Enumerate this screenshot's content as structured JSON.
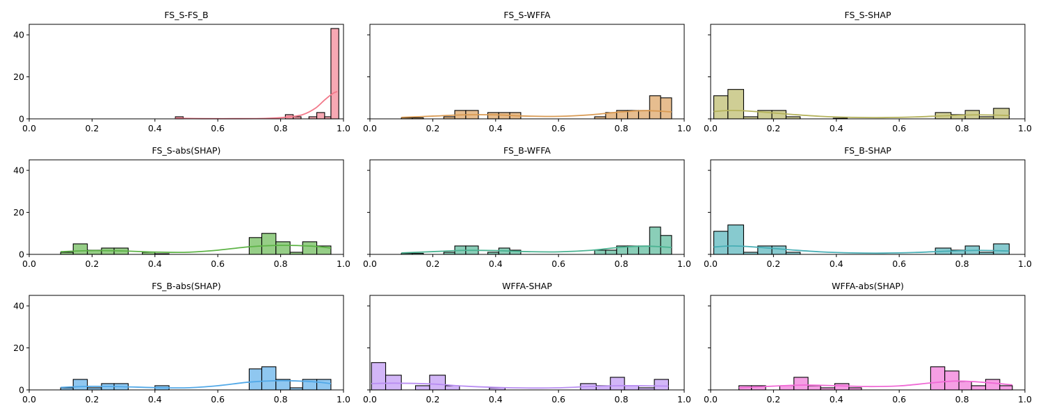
{
  "chart_data": [
    {
      "type": "histogram",
      "title": "FS_S-FS_B",
      "color": "#f2798a",
      "xlim": [
        0,
        1
      ],
      "ylim": [
        0,
        45
      ],
      "xticks": [
        "0.0",
        "0.2",
        "0.4",
        "0.6",
        "0.8",
        "1.0"
      ],
      "yticks": [
        "0",
        "20",
        "40"
      ],
      "bins": [
        {
          "x0": 0.465,
          "x1": 0.49,
          "count": 1
        },
        {
          "x0": 0.815,
          "x1": 0.84,
          "count": 2
        },
        {
          "x0": 0.84,
          "x1": 0.865,
          "count": 1
        },
        {
          "x0": 0.89,
          "x1": 0.915,
          "count": 1
        },
        {
          "x0": 0.915,
          "x1": 0.94,
          "count": 3
        },
        {
          "x0": 0.94,
          "x1": 0.96,
          "count": 1
        },
        {
          "x0": 0.96,
          "x1": 0.985,
          "count": 43
        }
      ],
      "kde": [
        [
          0.465,
          0.3
        ],
        [
          0.55,
          0.1
        ],
        [
          0.65,
          0.1
        ],
        [
          0.75,
          0.2
        ],
        [
          0.82,
          0.8
        ],
        [
          0.87,
          2.0
        ],
        [
          0.91,
          5.0
        ],
        [
          0.94,
          9.0
        ],
        [
          0.965,
          12.0
        ],
        [
          0.98,
          13.0
        ]
      ]
    },
    {
      "type": "histogram",
      "title": "FS_S-WFFA",
      "color": "#d99a52",
      "xlim": [
        0,
        1
      ],
      "ylim": [
        0,
        45
      ],
      "xticks": [
        "0.0",
        "0.2",
        "0.4",
        "0.6",
        "0.8",
        "1.0"
      ],
      "yticks": [
        "0",
        "20",
        "40"
      ],
      "bins": [
        {
          "x0": 0.1,
          "x1": 0.135,
          "count": 0.5
        },
        {
          "x0": 0.135,
          "x1": 0.17,
          "count": 0.5
        },
        {
          "x0": 0.235,
          "x1": 0.27,
          "count": 1
        },
        {
          "x0": 0.27,
          "x1": 0.305,
          "count": 4
        },
        {
          "x0": 0.305,
          "x1": 0.345,
          "count": 4
        },
        {
          "x0": 0.375,
          "x1": 0.41,
          "count": 3
        },
        {
          "x0": 0.41,
          "x1": 0.445,
          "count": 3
        },
        {
          "x0": 0.445,
          "x1": 0.48,
          "count": 3
        },
        {
          "x0": 0.715,
          "x1": 0.75,
          "count": 1
        },
        {
          "x0": 0.75,
          "x1": 0.785,
          "count": 3
        },
        {
          "x0": 0.785,
          "x1": 0.82,
          "count": 4
        },
        {
          "x0": 0.82,
          "x1": 0.855,
          "count": 4
        },
        {
          "x0": 0.855,
          "x1": 0.89,
          "count": 4
        },
        {
          "x0": 0.89,
          "x1": 0.925,
          "count": 11
        },
        {
          "x0": 0.925,
          "x1": 0.96,
          "count": 10
        }
      ],
      "kde": [
        [
          0.1,
          0.7
        ],
        [
          0.2,
          1.3
        ],
        [
          0.3,
          1.9
        ],
        [
          0.4,
          1.9
        ],
        [
          0.5,
          1.3
        ],
        [
          0.6,
          1.2
        ],
        [
          0.7,
          1.9
        ],
        [
          0.8,
          3.3
        ],
        [
          0.88,
          3.9
        ],
        [
          0.96,
          3.3
        ]
      ]
    },
    {
      "type": "histogram",
      "title": "FS_S-SHAP",
      "color": "#b5b35c",
      "xlim": [
        0,
        1
      ],
      "ylim": [
        0,
        45
      ],
      "xticks": [
        "0.0",
        "0.2",
        "0.4",
        "0.6",
        "0.8",
        "1.0"
      ],
      "yticks": [
        "0",
        "20",
        "40"
      ],
      "bins": [
        {
          "x0": 0.01,
          "x1": 0.055,
          "count": 11
        },
        {
          "x0": 0.055,
          "x1": 0.105,
          "count": 14
        },
        {
          "x0": 0.105,
          "x1": 0.15,
          "count": 1
        },
        {
          "x0": 0.15,
          "x1": 0.195,
          "count": 4
        },
        {
          "x0": 0.195,
          "x1": 0.24,
          "count": 4
        },
        {
          "x0": 0.24,
          "x1": 0.285,
          "count": 1
        },
        {
          "x0": 0.39,
          "x1": 0.435,
          "count": 0.3
        },
        {
          "x0": 0.715,
          "x1": 0.765,
          "count": 3
        },
        {
          "x0": 0.765,
          "x1": 0.81,
          "count": 2
        },
        {
          "x0": 0.81,
          "x1": 0.855,
          "count": 4
        },
        {
          "x0": 0.855,
          "x1": 0.9,
          "count": 1
        },
        {
          "x0": 0.9,
          "x1": 0.95,
          "count": 5
        }
      ],
      "kde": [
        [
          0.01,
          3.5
        ],
        [
          0.07,
          4.0
        ],
        [
          0.15,
          3.4
        ],
        [
          0.25,
          2.2
        ],
        [
          0.35,
          1.2
        ],
        [
          0.45,
          0.7
        ],
        [
          0.55,
          0.6
        ],
        [
          0.65,
          0.9
        ],
        [
          0.75,
          1.5
        ],
        [
          0.85,
          1.9
        ],
        [
          0.95,
          1.6
        ]
      ]
    },
    {
      "type": "histogram",
      "title": "FS_S-abs(SHAP)",
      "color": "#5db346",
      "xlim": [
        0,
        1
      ],
      "ylim": [
        0,
        45
      ],
      "xticks": [
        "0.0",
        "0.2",
        "0.4",
        "0.6",
        "0.8",
        "1.0"
      ],
      "yticks": [
        "0",
        "20",
        "40"
      ],
      "bins": [
        {
          "x0": 0.1,
          "x1": 0.14,
          "count": 1
        },
        {
          "x0": 0.14,
          "x1": 0.185,
          "count": 5
        },
        {
          "x0": 0.185,
          "x1": 0.23,
          "count": 2
        },
        {
          "x0": 0.23,
          "x1": 0.27,
          "count": 3
        },
        {
          "x0": 0.27,
          "x1": 0.315,
          "count": 3
        },
        {
          "x0": 0.36,
          "x1": 0.4,
          "count": 1
        },
        {
          "x0": 0.4,
          "x1": 0.445,
          "count": 0.3
        },
        {
          "x0": 0.7,
          "x1": 0.74,
          "count": 8
        },
        {
          "x0": 0.74,
          "x1": 0.785,
          "count": 10
        },
        {
          "x0": 0.785,
          "x1": 0.83,
          "count": 6
        },
        {
          "x0": 0.83,
          "x1": 0.87,
          "count": 1
        },
        {
          "x0": 0.87,
          "x1": 0.915,
          "count": 6
        },
        {
          "x0": 0.915,
          "x1": 0.96,
          "count": 4
        }
      ],
      "kde": [
        [
          0.1,
          1.3
        ],
        [
          0.2,
          1.8
        ],
        [
          0.3,
          1.6
        ],
        [
          0.4,
          1.1
        ],
        [
          0.5,
          1.0
        ],
        [
          0.6,
          2.0
        ],
        [
          0.7,
          3.6
        ],
        [
          0.8,
          4.3
        ],
        [
          0.9,
          3.9
        ],
        [
          0.96,
          3.0
        ]
      ]
    },
    {
      "type": "histogram",
      "title": "FS_B-WFFA",
      "color": "#4bb392",
      "xlim": [
        0,
        1
      ],
      "ylim": [
        0,
        45
      ],
      "xticks": [
        "0.0",
        "0.2",
        "0.4",
        "0.6",
        "0.8",
        "1.0"
      ],
      "yticks": [
        "0",
        "20",
        "40"
      ],
      "bins": [
        {
          "x0": 0.1,
          "x1": 0.135,
          "count": 0.5
        },
        {
          "x0": 0.135,
          "x1": 0.17,
          "count": 0.5
        },
        {
          "x0": 0.235,
          "x1": 0.27,
          "count": 1
        },
        {
          "x0": 0.27,
          "x1": 0.305,
          "count": 4
        },
        {
          "x0": 0.305,
          "x1": 0.345,
          "count": 4
        },
        {
          "x0": 0.375,
          "x1": 0.41,
          "count": 1
        },
        {
          "x0": 0.41,
          "x1": 0.445,
          "count": 3
        },
        {
          "x0": 0.445,
          "x1": 0.48,
          "count": 2
        },
        {
          "x0": 0.715,
          "x1": 0.75,
          "count": 2
        },
        {
          "x0": 0.75,
          "x1": 0.785,
          "count": 2
        },
        {
          "x0": 0.785,
          "x1": 0.82,
          "count": 4
        },
        {
          "x0": 0.82,
          "x1": 0.855,
          "count": 4
        },
        {
          "x0": 0.855,
          "x1": 0.89,
          "count": 4
        },
        {
          "x0": 0.89,
          "x1": 0.925,
          "count": 13
        },
        {
          "x0": 0.925,
          "x1": 0.96,
          "count": 9
        }
      ],
      "kde": [
        [
          0.1,
          0.7
        ],
        [
          0.2,
          1.3
        ],
        [
          0.3,
          1.9
        ],
        [
          0.4,
          1.8
        ],
        [
          0.5,
          1.3
        ],
        [
          0.6,
          1.2
        ],
        [
          0.7,
          1.9
        ],
        [
          0.8,
          3.4
        ],
        [
          0.88,
          3.9
        ],
        [
          0.96,
          3.3
        ]
      ]
    },
    {
      "type": "histogram",
      "title": "FS_B-SHAP",
      "color": "#47aeb5",
      "xlim": [
        0,
        1
      ],
      "ylim": [
        0,
        45
      ],
      "xticks": [
        "0.0",
        "0.2",
        "0.4",
        "0.6",
        "0.8",
        "1.0"
      ],
      "yticks": [
        "0",
        "20",
        "40"
      ],
      "bins": [
        {
          "x0": 0.01,
          "x1": 0.055,
          "count": 11
        },
        {
          "x0": 0.055,
          "x1": 0.105,
          "count": 14
        },
        {
          "x0": 0.105,
          "x1": 0.15,
          "count": 1
        },
        {
          "x0": 0.15,
          "x1": 0.195,
          "count": 4
        },
        {
          "x0": 0.195,
          "x1": 0.24,
          "count": 4
        },
        {
          "x0": 0.24,
          "x1": 0.285,
          "count": 1
        },
        {
          "x0": 0.715,
          "x1": 0.765,
          "count": 3
        },
        {
          "x0": 0.765,
          "x1": 0.81,
          "count": 2
        },
        {
          "x0": 0.81,
          "x1": 0.855,
          "count": 4
        },
        {
          "x0": 0.855,
          "x1": 0.9,
          "count": 1
        },
        {
          "x0": 0.9,
          "x1": 0.95,
          "count": 5
        }
      ],
      "kde": [
        [
          0.01,
          3.5
        ],
        [
          0.07,
          4.0
        ],
        [
          0.15,
          3.4
        ],
        [
          0.25,
          2.2
        ],
        [
          0.35,
          1.2
        ],
        [
          0.45,
          0.7
        ],
        [
          0.55,
          0.6
        ],
        [
          0.65,
          0.9
        ],
        [
          0.75,
          1.5
        ],
        [
          0.85,
          1.9
        ],
        [
          0.95,
          1.6
        ]
      ]
    },
    {
      "type": "histogram",
      "title": "FS_B-abs(SHAP)",
      "color": "#52a9e8",
      "xlim": [
        0,
        1
      ],
      "ylim": [
        0,
        45
      ],
      "xticks": [
        "0.0",
        "0.2",
        "0.4",
        "0.6",
        "0.8",
        "1.0"
      ],
      "yticks": [
        "0",
        "20",
        "40"
      ],
      "bins": [
        {
          "x0": 0.1,
          "x1": 0.14,
          "count": 1
        },
        {
          "x0": 0.14,
          "x1": 0.185,
          "count": 5
        },
        {
          "x0": 0.185,
          "x1": 0.23,
          "count": 1
        },
        {
          "x0": 0.23,
          "x1": 0.27,
          "count": 3
        },
        {
          "x0": 0.27,
          "x1": 0.315,
          "count": 3
        },
        {
          "x0": 0.4,
          "x1": 0.445,
          "count": 2
        },
        {
          "x0": 0.7,
          "x1": 0.74,
          "count": 10
        },
        {
          "x0": 0.74,
          "x1": 0.785,
          "count": 11
        },
        {
          "x0": 0.785,
          "x1": 0.83,
          "count": 5
        },
        {
          "x0": 0.83,
          "x1": 0.87,
          "count": 1
        },
        {
          "x0": 0.87,
          "x1": 0.915,
          "count": 5
        },
        {
          "x0": 0.915,
          "x1": 0.96,
          "count": 5
        }
      ],
      "kde": [
        [
          0.1,
          1.2
        ],
        [
          0.2,
          1.7
        ],
        [
          0.3,
          1.5
        ],
        [
          0.4,
          1.1
        ],
        [
          0.5,
          1.0
        ],
        [
          0.6,
          2.0
        ],
        [
          0.7,
          3.7
        ],
        [
          0.8,
          4.4
        ],
        [
          0.9,
          3.9
        ],
        [
          0.96,
          3.0
        ]
      ]
    },
    {
      "type": "histogram",
      "title": "WFFA-SHAP",
      "color": "#b98ef2",
      "xlim": [
        0,
        1
      ],
      "ylim": [
        0,
        45
      ],
      "xticks": [
        "0.0",
        "0.2",
        "0.4",
        "0.6",
        "0.8",
        "1.0"
      ],
      "yticks": [
        "0",
        "20",
        "40"
      ],
      "bins": [
        {
          "x0": 0.005,
          "x1": 0.05,
          "count": 13
        },
        {
          "x0": 0.05,
          "x1": 0.1,
          "count": 7
        },
        {
          "x0": 0.145,
          "x1": 0.19,
          "count": 2
        },
        {
          "x0": 0.19,
          "x1": 0.24,
          "count": 7
        },
        {
          "x0": 0.24,
          "x1": 0.285,
          "count": 2
        },
        {
          "x0": 0.38,
          "x1": 0.43,
          "count": 1
        },
        {
          "x0": 0.67,
          "x1": 0.72,
          "count": 3
        },
        {
          "x0": 0.72,
          "x1": 0.765,
          "count": 2
        },
        {
          "x0": 0.765,
          "x1": 0.81,
          "count": 6
        },
        {
          "x0": 0.81,
          "x1": 0.855,
          "count": 2
        },
        {
          "x0": 0.855,
          "x1": 0.905,
          "count": 1
        },
        {
          "x0": 0.905,
          "x1": 0.95,
          "count": 5
        }
      ],
      "kde": [
        [
          0.005,
          3.0
        ],
        [
          0.08,
          3.2
        ],
        [
          0.2,
          2.8
        ],
        [
          0.3,
          1.8
        ],
        [
          0.4,
          1.2
        ],
        [
          0.5,
          0.9
        ],
        [
          0.6,
          1.0
        ],
        [
          0.7,
          1.6
        ],
        [
          0.8,
          2.0
        ],
        [
          0.9,
          1.9
        ],
        [
          0.95,
          1.8
        ]
      ]
    },
    {
      "type": "histogram",
      "title": "WFFA-abs(SHAP)",
      "color": "#f06bd6",
      "xlim": [
        0,
        1
      ],
      "ylim": [
        0,
        45
      ],
      "xticks": [
        "0.0",
        "0.2",
        "0.4",
        "0.6",
        "0.8",
        "1.0"
      ],
      "yticks": [
        "0",
        "20",
        "40"
      ],
      "bins": [
        {
          "x0": 0.09,
          "x1": 0.13,
          "count": 2
        },
        {
          "x0": 0.13,
          "x1": 0.175,
          "count": 2
        },
        {
          "x0": 0.22,
          "x1": 0.265,
          "count": 2
        },
        {
          "x0": 0.265,
          "x1": 0.31,
          "count": 6
        },
        {
          "x0": 0.31,
          "x1": 0.35,
          "count": 2
        },
        {
          "x0": 0.35,
          "x1": 0.395,
          "count": 1
        },
        {
          "x0": 0.395,
          "x1": 0.44,
          "count": 3
        },
        {
          "x0": 0.44,
          "x1": 0.48,
          "count": 1
        },
        {
          "x0": 0.7,
          "x1": 0.745,
          "count": 11
        },
        {
          "x0": 0.745,
          "x1": 0.79,
          "count": 9
        },
        {
          "x0": 0.79,
          "x1": 0.83,
          "count": 4
        },
        {
          "x0": 0.83,
          "x1": 0.875,
          "count": 2
        },
        {
          "x0": 0.875,
          "x1": 0.92,
          "count": 5
        },
        {
          "x0": 0.92,
          "x1": 0.96,
          "count": 2
        }
      ],
      "kde": [
        [
          0.09,
          1.0
        ],
        [
          0.2,
          1.8
        ],
        [
          0.3,
          2.3
        ],
        [
          0.4,
          2.0
        ],
        [
          0.5,
          1.6
        ],
        [
          0.6,
          1.9
        ],
        [
          0.7,
          3.3
        ],
        [
          0.78,
          4.2
        ],
        [
          0.86,
          3.7
        ],
        [
          0.96,
          2.4
        ]
      ]
    }
  ]
}
